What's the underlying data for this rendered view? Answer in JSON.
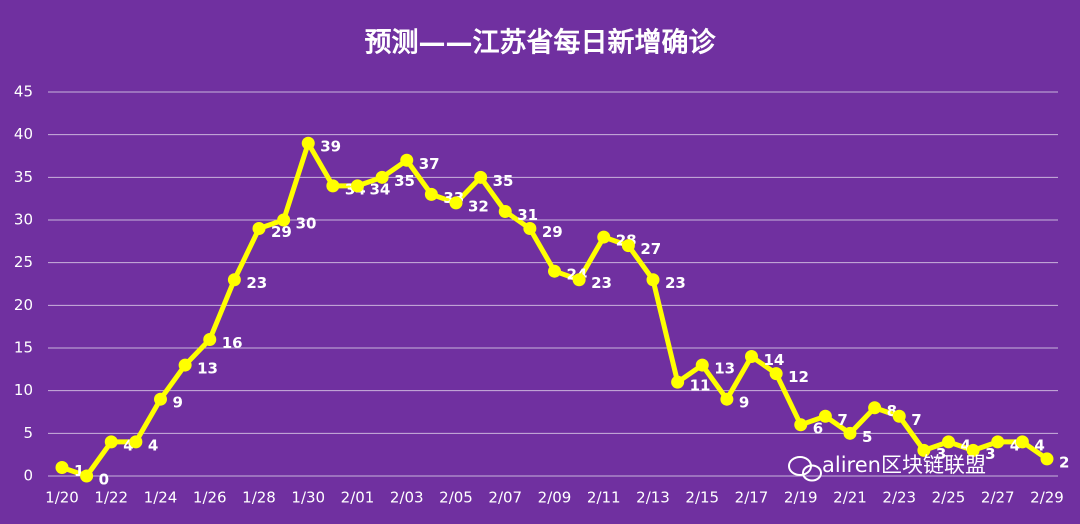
{
  "chart_data": {
    "type": "line",
    "title": "预测——江苏省每日新增确诊",
    "categories": [
      "1/20",
      null,
      "1/22",
      null,
      "1/24",
      null,
      "1/26",
      null,
      "1/28",
      null,
      "1/30",
      null,
      "2/01",
      null,
      "2/03",
      null,
      "2/05",
      null,
      "2/07",
      null,
      "2/09",
      null,
      "2/11",
      null,
      "2/13",
      null,
      "2/15",
      null,
      "2/17",
      null,
      "2/19",
      null,
      "2/21",
      null,
      "2/23",
      null,
      "2/25",
      null,
      "2/27",
      null,
      "2/29"
    ],
    "values": [
      1,
      0,
      4,
      4,
      9,
      13,
      16,
      23,
      29,
      30,
      39,
      34,
      34,
      35,
      37,
      33,
      32,
      35,
      31,
      29,
      24,
      23,
      28,
      27,
      23,
      11,
      13,
      9,
      14,
      12,
      6,
      7,
      5,
      8,
      7,
      3,
      4,
      3,
      4,
      4,
      2
    ],
    "color": "#ffff00",
    "ylim": [
      0,
      45
    ],
    "yticks": [
      0,
      5,
      10,
      15,
      20,
      25,
      30,
      35,
      40,
      45
    ],
    "grid": true,
    "watermark": "aliren区块链联盟"
  }
}
